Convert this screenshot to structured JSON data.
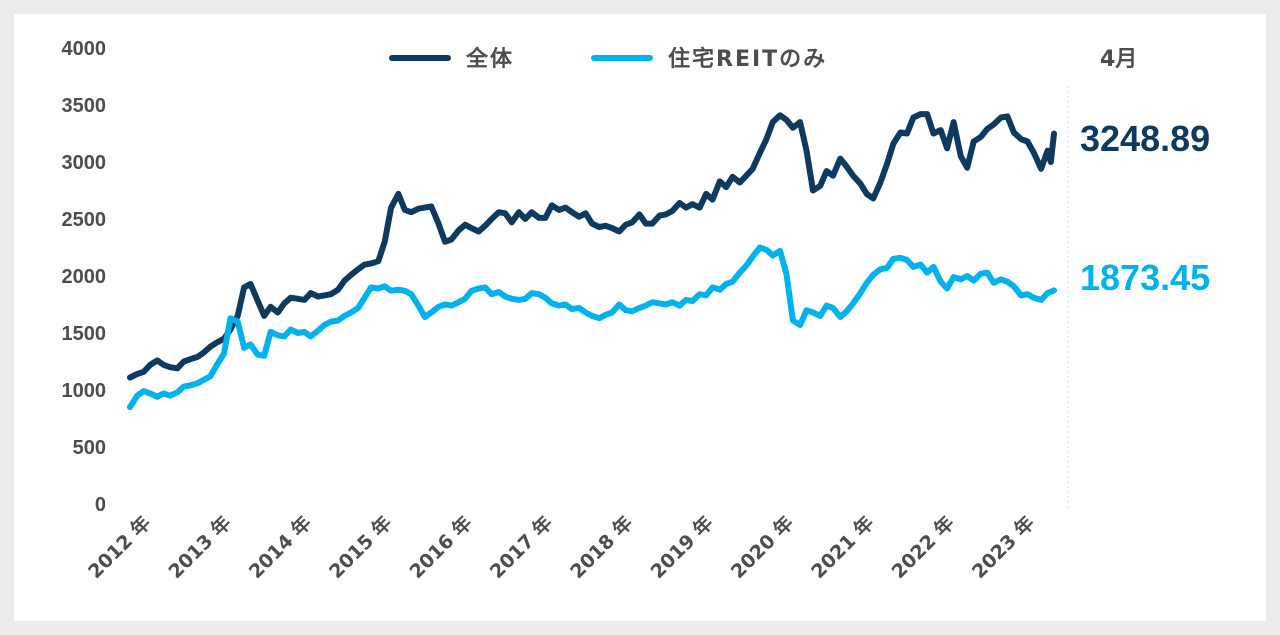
{
  "chart_data": {
    "type": "line",
    "title": "",
    "xlabel": "",
    "ylabel": "",
    "ylim": [
      0,
      4000
    ],
    "yticks": [
      0,
      500,
      1000,
      1500,
      2000,
      2500,
      3000,
      3500,
      4000
    ],
    "x_range": [
      2011.83,
      2023.33
    ],
    "x_tick_labels": [
      {
        "x": 2012,
        "label": "2012 年"
      },
      {
        "x": 2013,
        "label": "2013 年"
      },
      {
        "x": 2014,
        "label": "2014 年"
      },
      {
        "x": 2015,
        "label": "2015 年"
      },
      {
        "x": 2016,
        "label": "2016 年"
      },
      {
        "x": 2017,
        "label": "2017 年"
      },
      {
        "x": 2018,
        "label": "2018 年"
      },
      {
        "x": 2019,
        "label": "2019 年"
      },
      {
        "x": 2020,
        "label": "2020 年"
      },
      {
        "x": 2021,
        "label": "2021 年"
      },
      {
        "x": 2022,
        "label": "2022 年"
      },
      {
        "x": 2023,
        "label": "2023 年"
      }
    ],
    "grid": false,
    "legend_position": "top",
    "month_label": "4月",
    "series": [
      {
        "name": "全体",
        "color": "#0d3a5e",
        "end_label": "3248.89",
        "points": [
          [
            2011.83,
            1110
          ],
          [
            2011.92,
            1140
          ],
          [
            2012.0,
            1160
          ],
          [
            2012.08,
            1220
          ],
          [
            2012.17,
            1260
          ],
          [
            2012.25,
            1220
          ],
          [
            2012.33,
            1200
          ],
          [
            2012.42,
            1190
          ],
          [
            2012.5,
            1250
          ],
          [
            2012.58,
            1270
          ],
          [
            2012.67,
            1290
          ],
          [
            2012.75,
            1330
          ],
          [
            2012.83,
            1380
          ],
          [
            2012.92,
            1420
          ],
          [
            2013.0,
            1450
          ],
          [
            2013.08,
            1530
          ],
          [
            2013.17,
            1650
          ],
          [
            2013.25,
            1900
          ],
          [
            2013.33,
            1930
          ],
          [
            2013.42,
            1780
          ],
          [
            2013.5,
            1650
          ],
          [
            2013.58,
            1730
          ],
          [
            2013.67,
            1680
          ],
          [
            2013.75,
            1760
          ],
          [
            2013.83,
            1810
          ],
          [
            2013.92,
            1800
          ],
          [
            2014.0,
            1790
          ],
          [
            2014.08,
            1850
          ],
          [
            2014.17,
            1820
          ],
          [
            2014.25,
            1830
          ],
          [
            2014.33,
            1840
          ],
          [
            2014.42,
            1880
          ],
          [
            2014.5,
            1960
          ],
          [
            2014.58,
            2010
          ],
          [
            2014.67,
            2060
          ],
          [
            2014.75,
            2100
          ],
          [
            2014.83,
            2110
          ],
          [
            2014.92,
            2130
          ],
          [
            2015.0,
            2300
          ],
          [
            2015.08,
            2600
          ],
          [
            2015.17,
            2720
          ],
          [
            2015.25,
            2580
          ],
          [
            2015.33,
            2560
          ],
          [
            2015.42,
            2590
          ],
          [
            2015.5,
            2600
          ],
          [
            2015.58,
            2610
          ],
          [
            2015.67,
            2460
          ],
          [
            2015.75,
            2300
          ],
          [
            2015.83,
            2320
          ],
          [
            2015.92,
            2400
          ],
          [
            2016.0,
            2450
          ],
          [
            2016.08,
            2420
          ],
          [
            2016.17,
            2390
          ],
          [
            2016.25,
            2440
          ],
          [
            2016.33,
            2500
          ],
          [
            2016.42,
            2560
          ],
          [
            2016.5,
            2550
          ],
          [
            2016.58,
            2470
          ],
          [
            2016.67,
            2560
          ],
          [
            2016.75,
            2500
          ],
          [
            2016.83,
            2560
          ],
          [
            2016.92,
            2510
          ],
          [
            2017.0,
            2510
          ],
          [
            2017.08,
            2620
          ],
          [
            2017.17,
            2580
          ],
          [
            2017.25,
            2600
          ],
          [
            2017.33,
            2560
          ],
          [
            2017.42,
            2520
          ],
          [
            2017.5,
            2550
          ],
          [
            2017.58,
            2460
          ],
          [
            2017.67,
            2430
          ],
          [
            2017.75,
            2440
          ],
          [
            2017.83,
            2420
          ],
          [
            2017.92,
            2390
          ],
          [
            2018.0,
            2450
          ],
          [
            2018.08,
            2470
          ],
          [
            2018.17,
            2540
          ],
          [
            2018.25,
            2460
          ],
          [
            2018.33,
            2460
          ],
          [
            2018.42,
            2530
          ],
          [
            2018.5,
            2540
          ],
          [
            2018.58,
            2570
          ],
          [
            2018.67,
            2640
          ],
          [
            2018.75,
            2600
          ],
          [
            2018.83,
            2630
          ],
          [
            2018.92,
            2600
          ],
          [
            2019.0,
            2720
          ],
          [
            2019.08,
            2670
          ],
          [
            2019.17,
            2830
          ],
          [
            2019.25,
            2780
          ],
          [
            2019.33,
            2870
          ],
          [
            2019.42,
            2820
          ],
          [
            2019.5,
            2880
          ],
          [
            2019.58,
            2940
          ],
          [
            2019.67,
            3080
          ],
          [
            2019.75,
            3200
          ],
          [
            2019.83,
            3350
          ],
          [
            2019.92,
            3410
          ],
          [
            2020.0,
            3370
          ],
          [
            2020.08,
            3300
          ],
          [
            2020.17,
            3350
          ],
          [
            2020.25,
            3100
          ],
          [
            2020.33,
            2750
          ],
          [
            2020.42,
            2790
          ],
          [
            2020.5,
            2920
          ],
          [
            2020.58,
            2880
          ],
          [
            2020.67,
            3030
          ],
          [
            2020.75,
            2960
          ],
          [
            2020.83,
            2880
          ],
          [
            2020.92,
            2810
          ],
          [
            2021.0,
            2720
          ],
          [
            2021.08,
            2680
          ],
          [
            2021.17,
            2820
          ],
          [
            2021.25,
            2980
          ],
          [
            2021.33,
            3160
          ],
          [
            2021.42,
            3260
          ],
          [
            2021.5,
            3250
          ],
          [
            2021.58,
            3390
          ],
          [
            2021.67,
            3420
          ],
          [
            2021.75,
            3420
          ],
          [
            2021.83,
            3250
          ],
          [
            2021.92,
            3280
          ],
          [
            2022.0,
            3120
          ],
          [
            2022.08,
            3350
          ],
          [
            2022.17,
            3050
          ],
          [
            2022.25,
            2950
          ],
          [
            2022.33,
            3180
          ],
          [
            2022.42,
            3220
          ],
          [
            2022.5,
            3290
          ],
          [
            2022.58,
            3330
          ],
          [
            2022.67,
            3390
          ],
          [
            2022.75,
            3400
          ],
          [
            2022.83,
            3260
          ],
          [
            2022.92,
            3200
          ],
          [
            2023.0,
            3180
          ],
          [
            2023.08,
            3080
          ],
          [
            2023.17,
            2940
          ],
          [
            2023.25,
            3100
          ],
          [
            2023.29,
            3000
          ],
          [
            2023.33,
            3248.89
          ]
        ]
      },
      {
        "name": "住宅REITのみ",
        "color": "#00b2ec",
        "end_label": "1873.45",
        "points": [
          [
            2011.83,
            850
          ],
          [
            2011.92,
            950
          ],
          [
            2012.0,
            990
          ],
          [
            2012.08,
            970
          ],
          [
            2012.17,
            940
          ],
          [
            2012.25,
            970
          ],
          [
            2012.33,
            950
          ],
          [
            2012.42,
            980
          ],
          [
            2012.5,
            1030
          ],
          [
            2012.58,
            1040
          ],
          [
            2012.67,
            1060
          ],
          [
            2012.75,
            1090
          ],
          [
            2012.83,
            1120
          ],
          [
            2012.92,
            1230
          ],
          [
            2013.0,
            1320
          ],
          [
            2013.08,
            1630
          ],
          [
            2013.17,
            1600
          ],
          [
            2013.25,
            1370
          ],
          [
            2013.33,
            1400
          ],
          [
            2013.42,
            1310
          ],
          [
            2013.5,
            1300
          ],
          [
            2013.58,
            1510
          ],
          [
            2013.67,
            1480
          ],
          [
            2013.75,
            1470
          ],
          [
            2013.83,
            1530
          ],
          [
            2013.92,
            1500
          ],
          [
            2014.0,
            1510
          ],
          [
            2014.08,
            1470
          ],
          [
            2014.17,
            1520
          ],
          [
            2014.25,
            1570
          ],
          [
            2014.33,
            1600
          ],
          [
            2014.42,
            1610
          ],
          [
            2014.5,
            1650
          ],
          [
            2014.58,
            1680
          ],
          [
            2014.67,
            1720
          ],
          [
            2014.75,
            1810
          ],
          [
            2014.83,
            1900
          ],
          [
            2014.92,
            1890
          ],
          [
            2015.0,
            1910
          ],
          [
            2015.08,
            1870
          ],
          [
            2015.17,
            1880
          ],
          [
            2015.25,
            1870
          ],
          [
            2015.33,
            1840
          ],
          [
            2015.42,
            1740
          ],
          [
            2015.5,
            1640
          ],
          [
            2015.58,
            1680
          ],
          [
            2015.67,
            1730
          ],
          [
            2015.75,
            1750
          ],
          [
            2015.83,
            1740
          ],
          [
            2015.92,
            1770
          ],
          [
            2016.0,
            1800
          ],
          [
            2016.08,
            1870
          ],
          [
            2016.17,
            1890
          ],
          [
            2016.25,
            1900
          ],
          [
            2016.33,
            1840
          ],
          [
            2016.42,
            1860
          ],
          [
            2016.5,
            1820
          ],
          [
            2016.58,
            1800
          ],
          [
            2016.67,
            1790
          ],
          [
            2016.75,
            1800
          ],
          [
            2016.83,
            1850
          ],
          [
            2016.92,
            1840
          ],
          [
            2017.0,
            1810
          ],
          [
            2017.08,
            1760
          ],
          [
            2017.17,
            1740
          ],
          [
            2017.25,
            1750
          ],
          [
            2017.33,
            1710
          ],
          [
            2017.42,
            1720
          ],
          [
            2017.5,
            1680
          ],
          [
            2017.58,
            1650
          ],
          [
            2017.67,
            1630
          ],
          [
            2017.75,
            1660
          ],
          [
            2017.83,
            1680
          ],
          [
            2017.92,
            1750
          ],
          [
            2018.0,
            1700
          ],
          [
            2018.08,
            1690
          ],
          [
            2018.17,
            1720
          ],
          [
            2018.25,
            1740
          ],
          [
            2018.33,
            1770
          ],
          [
            2018.42,
            1760
          ],
          [
            2018.5,
            1750
          ],
          [
            2018.58,
            1770
          ],
          [
            2018.67,
            1740
          ],
          [
            2018.75,
            1790
          ],
          [
            2018.83,
            1780
          ],
          [
            2018.92,
            1840
          ],
          [
            2019.0,
            1830
          ],
          [
            2019.08,
            1900
          ],
          [
            2019.17,
            1880
          ],
          [
            2019.25,
            1930
          ],
          [
            2019.33,
            1950
          ],
          [
            2019.42,
            2030
          ],
          [
            2019.5,
            2090
          ],
          [
            2019.58,
            2170
          ],
          [
            2019.67,
            2250
          ],
          [
            2019.75,
            2230
          ],
          [
            2019.83,
            2180
          ],
          [
            2019.92,
            2220
          ],
          [
            2020.0,
            2020
          ],
          [
            2020.08,
            1610
          ],
          [
            2020.17,
            1570
          ],
          [
            2020.25,
            1700
          ],
          [
            2020.33,
            1680
          ],
          [
            2020.42,
            1650
          ],
          [
            2020.5,
            1740
          ],
          [
            2020.58,
            1720
          ],
          [
            2020.67,
            1640
          ],
          [
            2020.75,
            1690
          ],
          [
            2020.83,
            1760
          ],
          [
            2020.92,
            1850
          ],
          [
            2021.0,
            1940
          ],
          [
            2021.08,
            2010
          ],
          [
            2021.17,
            2060
          ],
          [
            2021.25,
            2070
          ],
          [
            2021.33,
            2150
          ],
          [
            2021.42,
            2160
          ],
          [
            2021.5,
            2140
          ],
          [
            2021.58,
            2080
          ],
          [
            2021.67,
            2100
          ],
          [
            2021.75,
            2030
          ],
          [
            2021.83,
            2080
          ],
          [
            2021.92,
            1950
          ],
          [
            2022.0,
            1890
          ],
          [
            2022.08,
            1990
          ],
          [
            2022.17,
            1970
          ],
          [
            2022.25,
            2000
          ],
          [
            2022.33,
            1960
          ],
          [
            2022.42,
            2020
          ],
          [
            2022.5,
            2030
          ],
          [
            2022.58,
            1940
          ],
          [
            2022.67,
            1970
          ],
          [
            2022.75,
            1950
          ],
          [
            2022.83,
            1910
          ],
          [
            2022.92,
            1830
          ],
          [
            2023.0,
            1840
          ],
          [
            2023.08,
            1810
          ],
          [
            2023.17,
            1790
          ],
          [
            2023.25,
            1850
          ],
          [
            2023.33,
            1873.45
          ]
        ]
      }
    ]
  }
}
